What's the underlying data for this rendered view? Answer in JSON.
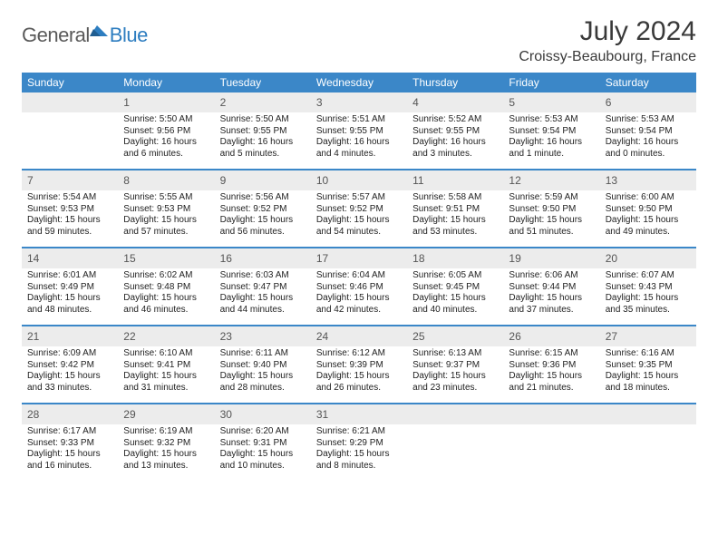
{
  "logo": {
    "general": "General",
    "blue": "Blue"
  },
  "title": "July 2024",
  "location": "Croissy-Beaubourg, France",
  "day_headers": [
    "Sunday",
    "Monday",
    "Tuesday",
    "Wednesday",
    "Thursday",
    "Friday",
    "Saturday"
  ],
  "colors": {
    "header_bg": "#3b87c8",
    "header_fg": "#ffffff",
    "daynum_bg": "#ececec",
    "rule": "#3b87c8",
    "logo_gray": "#5a5a5a",
    "logo_blue": "#2d7dc0"
  },
  "weeks": [
    [
      {
        "day": "",
        "sunrise": "",
        "sunset": "",
        "daylight": ""
      },
      {
        "day": "1",
        "sunrise": "Sunrise: 5:50 AM",
        "sunset": "Sunset: 9:56 PM",
        "daylight": "Daylight: 16 hours and 6 minutes."
      },
      {
        "day": "2",
        "sunrise": "Sunrise: 5:50 AM",
        "sunset": "Sunset: 9:55 PM",
        "daylight": "Daylight: 16 hours and 5 minutes."
      },
      {
        "day": "3",
        "sunrise": "Sunrise: 5:51 AM",
        "sunset": "Sunset: 9:55 PM",
        "daylight": "Daylight: 16 hours and 4 minutes."
      },
      {
        "day": "4",
        "sunrise": "Sunrise: 5:52 AM",
        "sunset": "Sunset: 9:55 PM",
        "daylight": "Daylight: 16 hours and 3 minutes."
      },
      {
        "day": "5",
        "sunrise": "Sunrise: 5:53 AM",
        "sunset": "Sunset: 9:54 PM",
        "daylight": "Daylight: 16 hours and 1 minute."
      },
      {
        "day": "6",
        "sunrise": "Sunrise: 5:53 AM",
        "sunset": "Sunset: 9:54 PM",
        "daylight": "Daylight: 16 hours and 0 minutes."
      }
    ],
    [
      {
        "day": "7",
        "sunrise": "Sunrise: 5:54 AM",
        "sunset": "Sunset: 9:53 PM",
        "daylight": "Daylight: 15 hours and 59 minutes."
      },
      {
        "day": "8",
        "sunrise": "Sunrise: 5:55 AM",
        "sunset": "Sunset: 9:53 PM",
        "daylight": "Daylight: 15 hours and 57 minutes."
      },
      {
        "day": "9",
        "sunrise": "Sunrise: 5:56 AM",
        "sunset": "Sunset: 9:52 PM",
        "daylight": "Daylight: 15 hours and 56 minutes."
      },
      {
        "day": "10",
        "sunrise": "Sunrise: 5:57 AM",
        "sunset": "Sunset: 9:52 PM",
        "daylight": "Daylight: 15 hours and 54 minutes."
      },
      {
        "day": "11",
        "sunrise": "Sunrise: 5:58 AM",
        "sunset": "Sunset: 9:51 PM",
        "daylight": "Daylight: 15 hours and 53 minutes."
      },
      {
        "day": "12",
        "sunrise": "Sunrise: 5:59 AM",
        "sunset": "Sunset: 9:50 PM",
        "daylight": "Daylight: 15 hours and 51 minutes."
      },
      {
        "day": "13",
        "sunrise": "Sunrise: 6:00 AM",
        "sunset": "Sunset: 9:50 PM",
        "daylight": "Daylight: 15 hours and 49 minutes."
      }
    ],
    [
      {
        "day": "14",
        "sunrise": "Sunrise: 6:01 AM",
        "sunset": "Sunset: 9:49 PM",
        "daylight": "Daylight: 15 hours and 48 minutes."
      },
      {
        "day": "15",
        "sunrise": "Sunrise: 6:02 AM",
        "sunset": "Sunset: 9:48 PM",
        "daylight": "Daylight: 15 hours and 46 minutes."
      },
      {
        "day": "16",
        "sunrise": "Sunrise: 6:03 AM",
        "sunset": "Sunset: 9:47 PM",
        "daylight": "Daylight: 15 hours and 44 minutes."
      },
      {
        "day": "17",
        "sunrise": "Sunrise: 6:04 AM",
        "sunset": "Sunset: 9:46 PM",
        "daylight": "Daylight: 15 hours and 42 minutes."
      },
      {
        "day": "18",
        "sunrise": "Sunrise: 6:05 AM",
        "sunset": "Sunset: 9:45 PM",
        "daylight": "Daylight: 15 hours and 40 minutes."
      },
      {
        "day": "19",
        "sunrise": "Sunrise: 6:06 AM",
        "sunset": "Sunset: 9:44 PM",
        "daylight": "Daylight: 15 hours and 37 minutes."
      },
      {
        "day": "20",
        "sunrise": "Sunrise: 6:07 AM",
        "sunset": "Sunset: 9:43 PM",
        "daylight": "Daylight: 15 hours and 35 minutes."
      }
    ],
    [
      {
        "day": "21",
        "sunrise": "Sunrise: 6:09 AM",
        "sunset": "Sunset: 9:42 PM",
        "daylight": "Daylight: 15 hours and 33 minutes."
      },
      {
        "day": "22",
        "sunrise": "Sunrise: 6:10 AM",
        "sunset": "Sunset: 9:41 PM",
        "daylight": "Daylight: 15 hours and 31 minutes."
      },
      {
        "day": "23",
        "sunrise": "Sunrise: 6:11 AM",
        "sunset": "Sunset: 9:40 PM",
        "daylight": "Daylight: 15 hours and 28 minutes."
      },
      {
        "day": "24",
        "sunrise": "Sunrise: 6:12 AM",
        "sunset": "Sunset: 9:39 PM",
        "daylight": "Daylight: 15 hours and 26 minutes."
      },
      {
        "day": "25",
        "sunrise": "Sunrise: 6:13 AM",
        "sunset": "Sunset: 9:37 PM",
        "daylight": "Daylight: 15 hours and 23 minutes."
      },
      {
        "day": "26",
        "sunrise": "Sunrise: 6:15 AM",
        "sunset": "Sunset: 9:36 PM",
        "daylight": "Daylight: 15 hours and 21 minutes."
      },
      {
        "day": "27",
        "sunrise": "Sunrise: 6:16 AM",
        "sunset": "Sunset: 9:35 PM",
        "daylight": "Daylight: 15 hours and 18 minutes."
      }
    ],
    [
      {
        "day": "28",
        "sunrise": "Sunrise: 6:17 AM",
        "sunset": "Sunset: 9:33 PM",
        "daylight": "Daylight: 15 hours and 16 minutes."
      },
      {
        "day": "29",
        "sunrise": "Sunrise: 6:19 AM",
        "sunset": "Sunset: 9:32 PM",
        "daylight": "Daylight: 15 hours and 13 minutes."
      },
      {
        "day": "30",
        "sunrise": "Sunrise: 6:20 AM",
        "sunset": "Sunset: 9:31 PM",
        "daylight": "Daylight: 15 hours and 10 minutes."
      },
      {
        "day": "31",
        "sunrise": "Sunrise: 6:21 AM",
        "sunset": "Sunset: 9:29 PM",
        "daylight": "Daylight: 15 hours and 8 minutes."
      },
      {
        "day": "",
        "sunrise": "",
        "sunset": "",
        "daylight": ""
      },
      {
        "day": "",
        "sunrise": "",
        "sunset": "",
        "daylight": ""
      },
      {
        "day": "",
        "sunrise": "",
        "sunset": "",
        "daylight": ""
      }
    ]
  ]
}
